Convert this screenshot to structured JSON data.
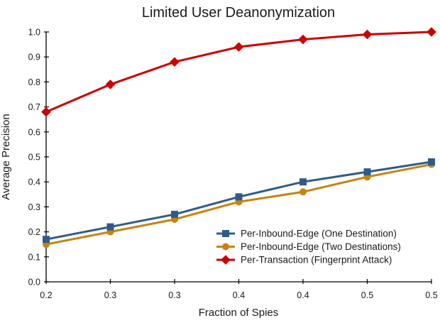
{
  "chart_data": {
    "type": "line",
    "title": "Limited User Deanonymization",
    "xlabel": "Fraction of Spies",
    "ylabel": "Average Precision",
    "xlim": [
      0.2,
      0.5
    ],
    "ylim": [
      0.0,
      1.0
    ],
    "grid": false,
    "legend_position": "lower right inside plot, no frame",
    "x": [
      0.2,
      0.25,
      0.3,
      0.35,
      0.4,
      0.45,
      0.5
    ],
    "x_tick_labels": [
      "0.2",
      "0.3",
      "0.3",
      "0.4",
      "0.4",
      "0.5",
      "0.5"
    ],
    "y_ticks": [
      0.0,
      0.1,
      0.2,
      0.3,
      0.4,
      0.5,
      0.6,
      0.7,
      0.8,
      0.9,
      1.0
    ],
    "y_tick_labels": [
      "0.0",
      "0.1",
      "0.2",
      "0.3",
      "0.4",
      "0.5",
      "0.6",
      "0.7",
      "0.8",
      "0.9",
      "1.0"
    ],
    "axis_color": "#000000",
    "series": [
      {
        "name": "Per-Inbound-Edge (One Destination)",
        "marker": "square",
        "color": "#2e5c8a",
        "values": [
          0.17,
          0.22,
          0.27,
          0.34,
          0.4,
          0.44,
          0.48
        ]
      },
      {
        "name": "Per-Inbound-Edge (Two Destinations)",
        "marker": "circle",
        "color": "#c8820f",
        "values": [
          0.15,
          0.2,
          0.25,
          0.32,
          0.36,
          0.42,
          0.47
        ]
      },
      {
        "name": "Per-Transaction (Fingerprint Attack)",
        "marker": "diamond",
        "color": "#cc0000",
        "values": [
          0.68,
          0.79,
          0.88,
          0.94,
          0.97,
          0.99,
          1.0
        ]
      }
    ]
  }
}
